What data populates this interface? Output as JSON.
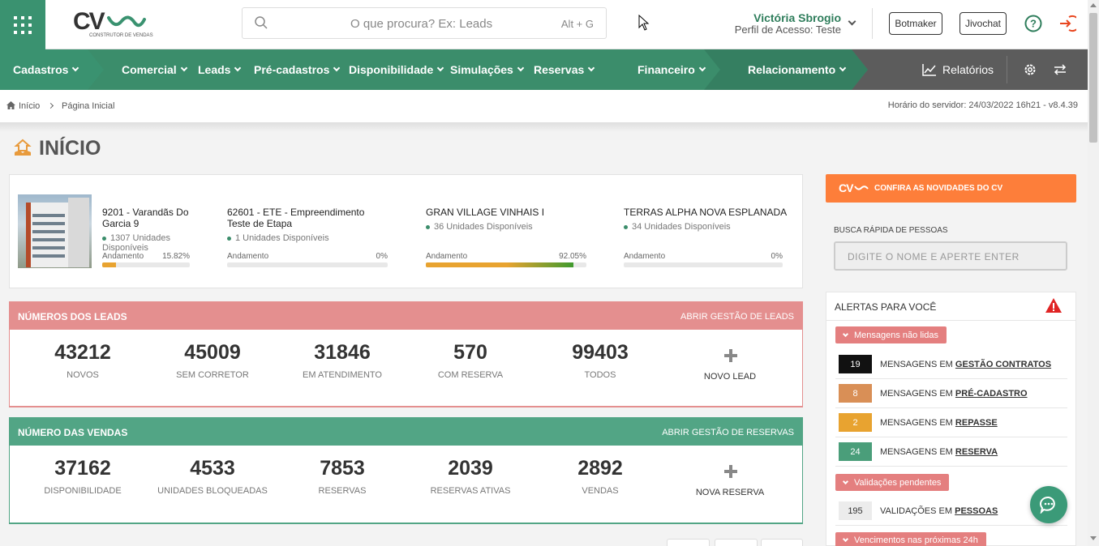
{
  "header": {
    "search_placeholder": "O que procura? Ex: Leads",
    "search_shortcut": "Alt + G",
    "user_name": "Victória Sbrogio",
    "user_role": "Perfil de Acesso: Teste",
    "buttons": [
      "Botmaker",
      "Jivochat"
    ],
    "logo_text": "CV",
    "logo_sub": "CONSTRUTOR DE VENDAS"
  },
  "nav": {
    "items": [
      "Cadastros",
      "Comercial",
      "Leads",
      "Pré-cadastros",
      "Disponibilidade",
      "Simulações",
      "Reservas",
      "Financeiro",
      "Relacionamento"
    ],
    "reports": "Relatórios"
  },
  "breadcrumb": {
    "home": "Início",
    "current": "Página Inicial",
    "server_time": "Horário do servidor: 24/03/2022 16h21 - v8.4.39"
  },
  "page_title": "INÍCIO",
  "empreendimentos": [
    {
      "name": "9201 - Varandãs Do Garcia 9",
      "units": "1307 Unidades Disponíveis",
      "progress_label": "Andamento",
      "progress": "15.82%",
      "progress_value": 15.82
    },
    {
      "name": "62601 - ETE - Empreendimento Teste de Etapa",
      "units": "1 Unidades Disponíveis",
      "progress_label": "Andamento",
      "progress": "0%",
      "progress_value": 0
    },
    {
      "name": "GRAN VILLAGE VINHAIS I",
      "units": "36 Unidades Disponíveis",
      "progress_label": "Andamento",
      "progress": "92.05%",
      "progress_value": 92.05
    },
    {
      "name": "TERRAS ALPHA NOVA ESPLANADA",
      "units": "34 Unidades Disponíveis",
      "progress_label": "Andamento",
      "progress": "0%",
      "progress_value": 0
    }
  ],
  "leads": {
    "title": "NÚMEROS DOS LEADS",
    "link": "ABRIR GESTÃO DE LEADS",
    "stats": [
      {
        "value": "43212",
        "label": "NOVOS"
      },
      {
        "value": "45009",
        "label": "SEM CORRETOR"
      },
      {
        "value": "31846",
        "label": "EM ATENDIMENTO"
      },
      {
        "value": "570",
        "label": "COM RESERVA"
      },
      {
        "value": "99403",
        "label": "TODOS"
      }
    ],
    "add_label": "NOVO LEAD"
  },
  "vendas": {
    "title": "NÚMERO DAS VENDAS",
    "link": "ABRIR GESTÃO DE RESERVAS",
    "stats": [
      {
        "value": "37162",
        "label": "DISPONIBILIDADE"
      },
      {
        "value": "4533",
        "label": "UNIDADES BLOQUEADAS"
      },
      {
        "value": "7853",
        "label": "RESERVAS"
      },
      {
        "value": "2039",
        "label": "RESERVAS ATIVAS"
      },
      {
        "value": "2892",
        "label": "VENDAS"
      }
    ],
    "add_label": "NOVA RESERVA"
  },
  "side": {
    "novidades": "CONFIRA AS NOVIDADES DO CV",
    "novidades_logo": "CV",
    "busca_label": "BUSCA RÁPIDA DE PESSOAS",
    "busca_placeholder": "DIGITE O NOME E APERTE ENTER",
    "alerts_title": "ALERTAS PARA VOCÊ",
    "group_unread": "Mensagens não lidas",
    "messages": [
      {
        "count": "19",
        "prefix": "MENSAGENS EM",
        "target": "GESTÃO CONTRATOS",
        "color": "#111111",
        "text_color": "#ffffff"
      },
      {
        "count": "8",
        "prefix": "MENSAGENS EM",
        "target": "PRÉ-CADASTRO",
        "color": "#d98f56",
        "text_color": "#ffffff"
      },
      {
        "count": "2",
        "prefix": "MENSAGENS EM",
        "target": "REPASSE",
        "color": "#e8a330",
        "text_color": "#ffffff"
      },
      {
        "count": "24",
        "prefix": "MENSAGENS EM",
        "target": "RESERVA",
        "color": "#4a9e7a",
        "text_color": "#ffffff"
      }
    ],
    "group_validations": "Validações pendentes",
    "validations": [
      {
        "count": "195",
        "prefix": "VALIDAÇÕES EM",
        "target": "PESSOAS",
        "color": "#ececec",
        "text_color": "#333333"
      }
    ],
    "group_due": "Vencimentos nas próximas 24h"
  }
}
